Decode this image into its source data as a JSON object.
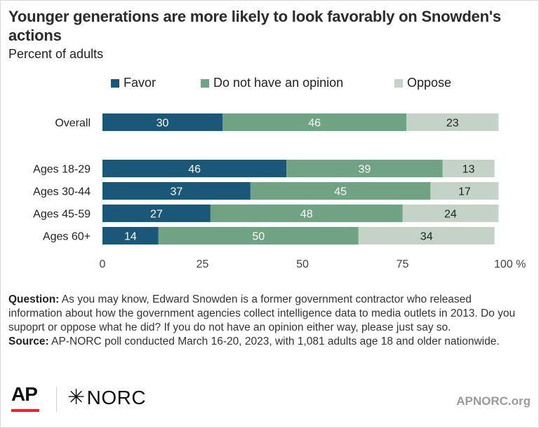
{
  "header": {
    "title": "Younger generations are more likely to look favorably on Snowden's actions",
    "subtitle": "Percent of adults"
  },
  "colors": {
    "favor": "#1b5878",
    "no_opinion": "#6fa383",
    "oppose": "#c4d2c8",
    "label_light": "#ffffff",
    "label_dark": "#222222"
  },
  "chart_data": {
    "type": "bar",
    "orientation": "horizontal",
    "stacked": true,
    "categories": [
      "Overall",
      "Ages 18-29",
      "Ages 30-44",
      "Ages 45-59",
      "Ages 60+"
    ],
    "series": [
      {
        "name": "Favor",
        "values": [
          30,
          46,
          37,
          27,
          14
        ]
      },
      {
        "name": "Do not have an opinion",
        "values": [
          46,
          39,
          45,
          48,
          50
        ]
      },
      {
        "name": "Oppose",
        "values": [
          23,
          13,
          17,
          24,
          34
        ]
      }
    ],
    "xlim": [
      0,
      100
    ],
    "x_ticks": [
      "0",
      "25",
      "50",
      "75",
      "100 %"
    ],
    "legend": "top",
    "grid": false
  },
  "notes": {
    "question_label": "Question:",
    "question_text": "As you may know, Edward Snowden is a former government contractor who released information about how the government agencies collect intelligence data to media outlets in 2013. Do you supoprt or oppose what he did? If you do not have an opinion either way, please just say so.",
    "source_label": "Source:",
    "source_text": "AP-NORC poll conducted March 16-20, 2023, with 1,081 adults age 18 and older nationwide."
  },
  "footer": {
    "ap_logo": "AP",
    "norc_logo": "NORC",
    "norc_mark": "✳",
    "site": "APNORC.org"
  }
}
